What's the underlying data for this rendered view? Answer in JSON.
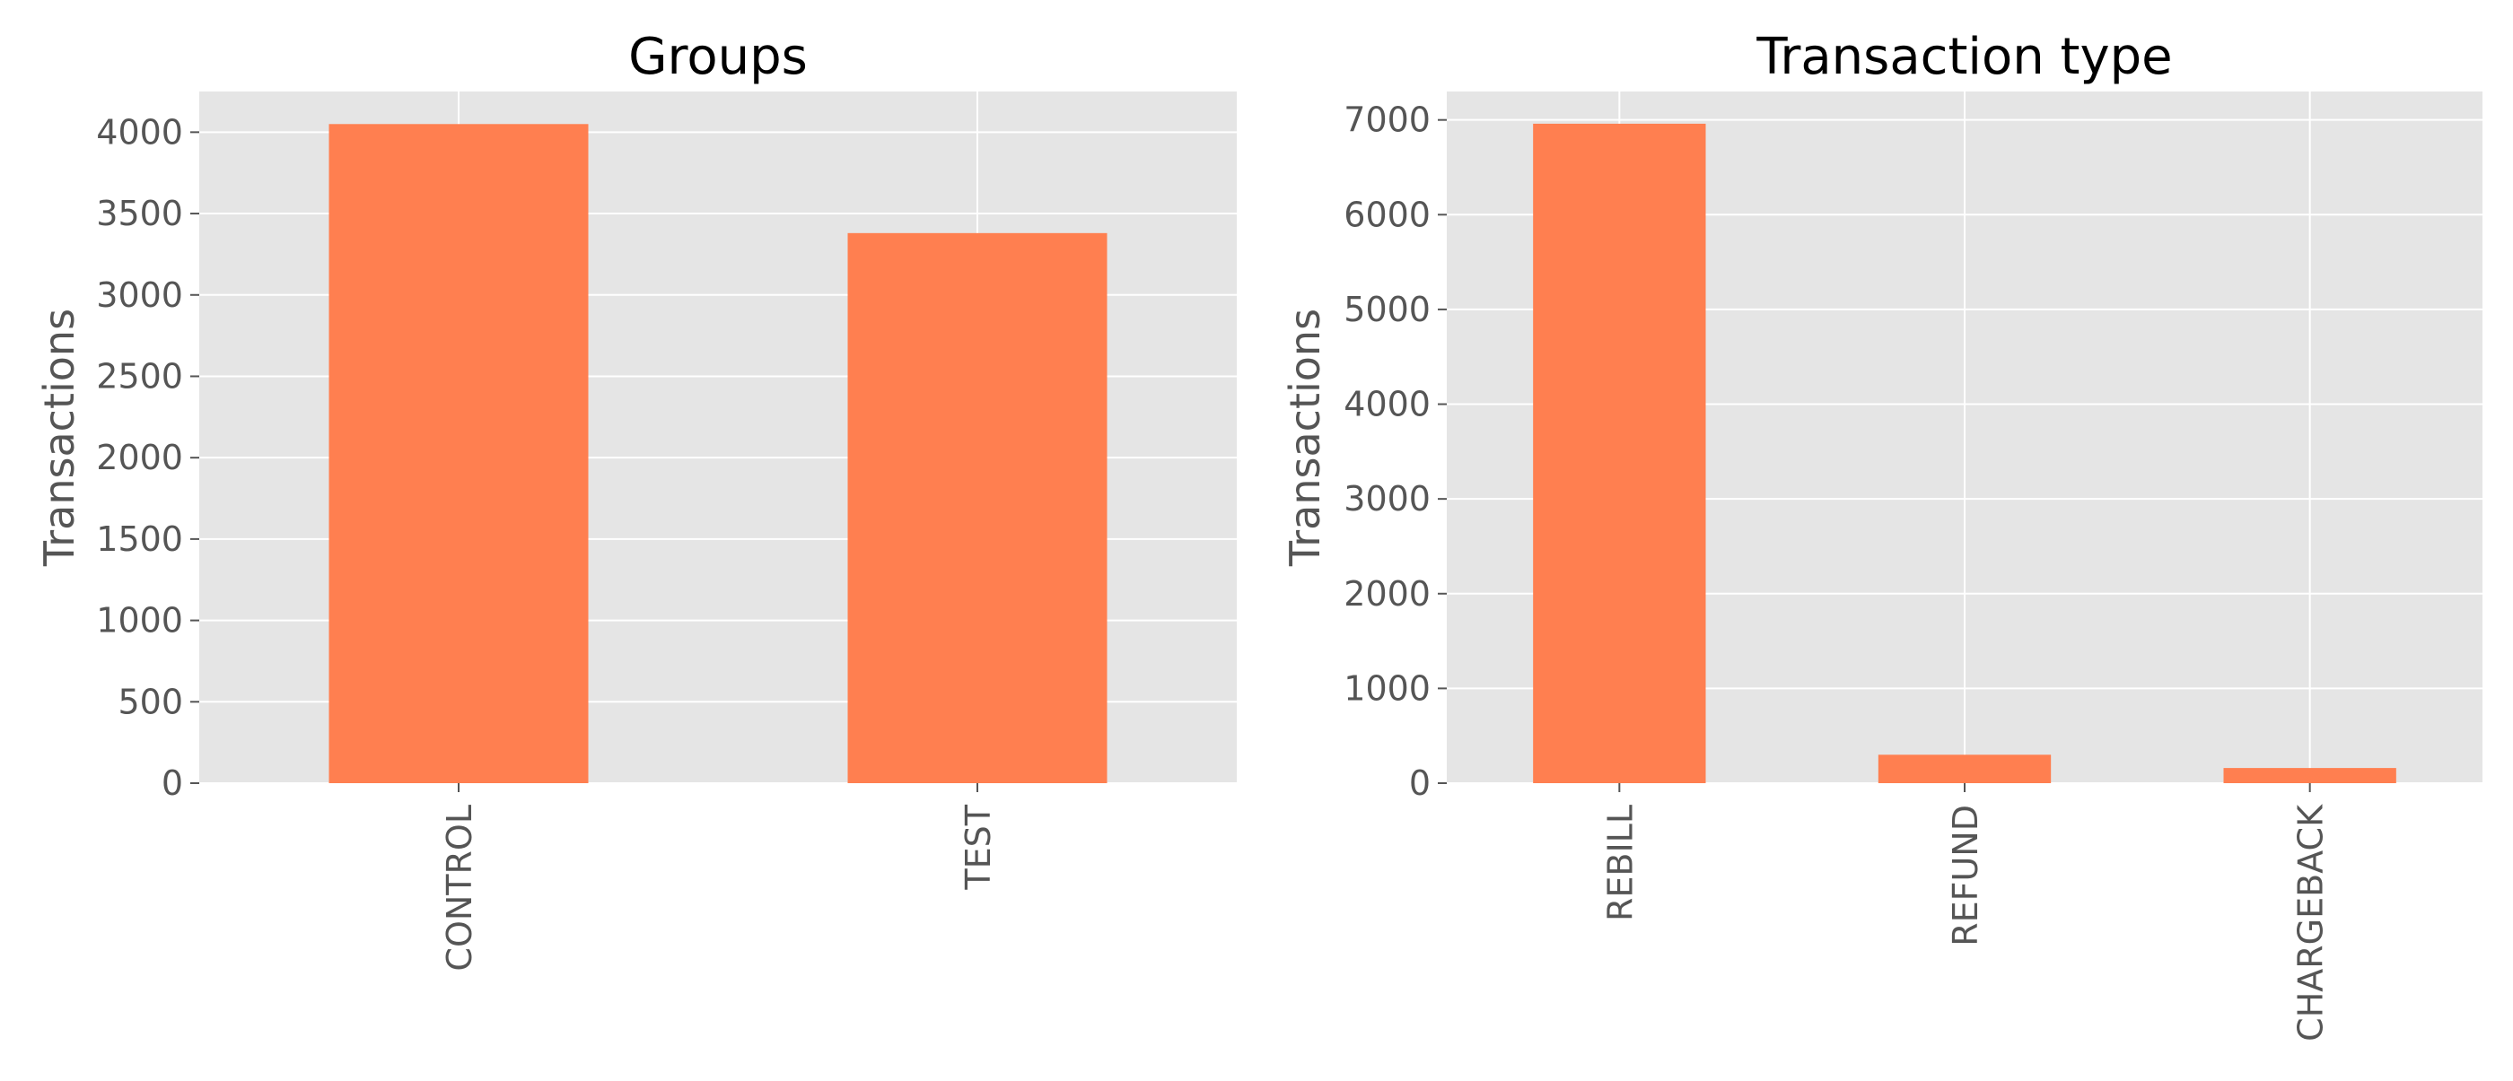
{
  "figure": {
    "background": "#ffffff",
    "plot_background": "#E5E5E5",
    "bar_color": "#FF7F50",
    "grid": true
  },
  "chart_data": [
    {
      "type": "bar",
      "title": "Groups",
      "xlabel": "",
      "ylabel": "Transactions",
      "categories": [
        "CONTROL",
        "TEST"
      ],
      "values": [
        4050,
        3380
      ],
      "ylim": [
        0,
        4250
      ],
      "yticks": [
        0,
        500,
        1000,
        1500,
        2000,
        2500,
        3000,
        3500,
        4000
      ],
      "xtick_rotation": "vertical",
      "grid": true
    },
    {
      "type": "bar",
      "title": "Transaction type",
      "xlabel": "",
      "ylabel": "Transactions",
      "categories": [
        "REBILL",
        "REFUND",
        "CHARGEBACK"
      ],
      "values": [
        6960,
        300,
        160
      ],
      "ylim": [
        0,
        7300
      ],
      "yticks": [
        0,
        1000,
        2000,
        3000,
        4000,
        5000,
        6000,
        7000
      ],
      "xtick_rotation": "vertical",
      "grid": true
    }
  ]
}
